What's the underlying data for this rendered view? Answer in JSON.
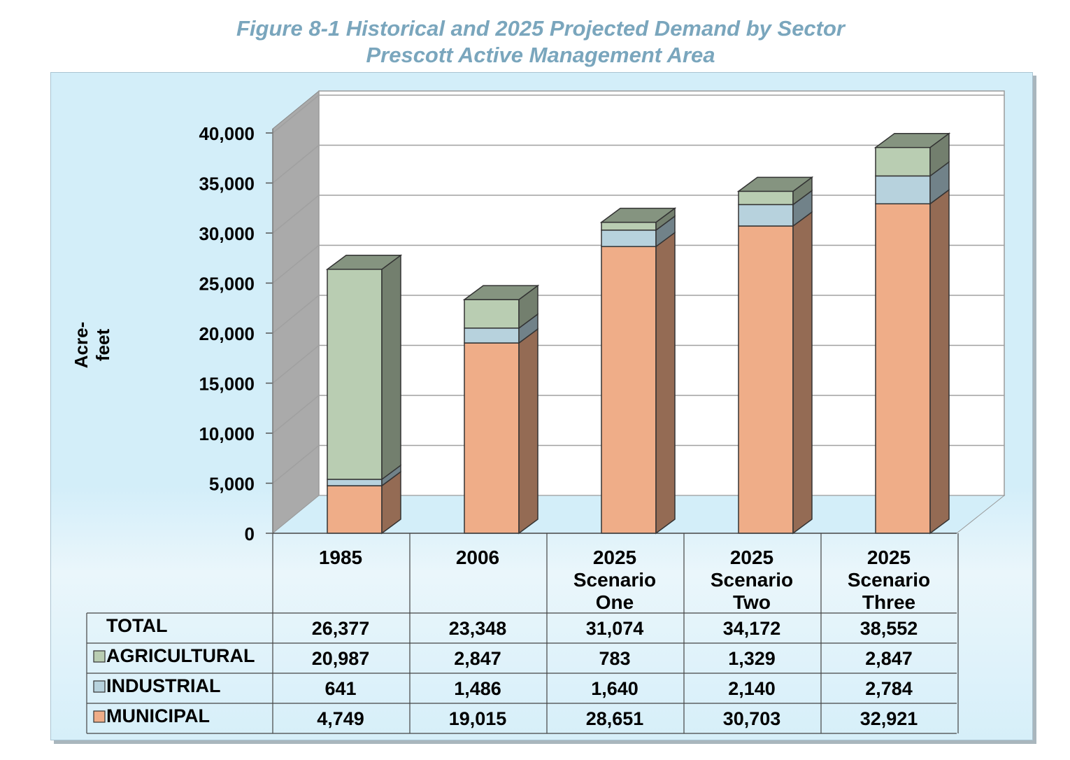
{
  "title": {
    "line1": "Figure 8-1  Historical and 2025 Projected Demand by Sector",
    "line2": "Prescott Active Management Area"
  },
  "chart_data": {
    "type": "bar",
    "stacked": true,
    "three_d": true,
    "ylabel": "Acre-feet",
    "ylim": [
      0,
      40000
    ],
    "y_ticks": [
      "0",
      "5,000",
      "10,000",
      "15,000",
      "20,000",
      "25,000",
      "30,000",
      "35,000",
      "40,000"
    ],
    "grid": true,
    "categories": [
      [
        "1985"
      ],
      [
        "2006"
      ],
      [
        "2025",
        "Scenario",
        "One"
      ],
      [
        "2025",
        "Scenario",
        "Two"
      ],
      [
        "2025",
        "Scenario",
        "Three"
      ]
    ],
    "series": [
      {
        "name": "MUNICIPAL",
        "values": [
          4749,
          19015,
          28651,
          30703,
          32921
        ],
        "color": "#efad88"
      },
      {
        "name": "INDUSTRIAL",
        "values": [
          641,
          1486,
          1640,
          2140,
          2784
        ],
        "color": "#b7d2dd"
      },
      {
        "name": "AGRICULTURAL",
        "values": [
          20987,
          2847,
          783,
          1329,
          2847
        ],
        "color": "#b9cdb2"
      }
    ],
    "data_table": {
      "row_order": [
        "TOTAL",
        "AGRICULTURAL",
        "INDUSTRIAL",
        "MUNICIPAL"
      ],
      "rows": [
        {
          "label": "TOTAL",
          "values": [
            "26,377",
            "23,348",
            "31,074",
            "34,172",
            "38,552"
          ]
        },
        {
          "label": "AGRICULTURAL",
          "values": [
            "20,987",
            "2,847",
            "783",
            "1,329",
            "2,847"
          ],
          "color": "#b9cdb2"
        },
        {
          "label": "INDUSTRIAL",
          "values": [
            "641",
            "1,486",
            "1,640",
            "2,140",
            "2,784"
          ],
          "color": "#b7d2dd"
        },
        {
          "label": "MUNICIPAL",
          "values": [
            "4,749",
            "19,015",
            "28,651",
            "30,703",
            "32,921"
          ],
          "color": "#efad88"
        }
      ]
    }
  }
}
